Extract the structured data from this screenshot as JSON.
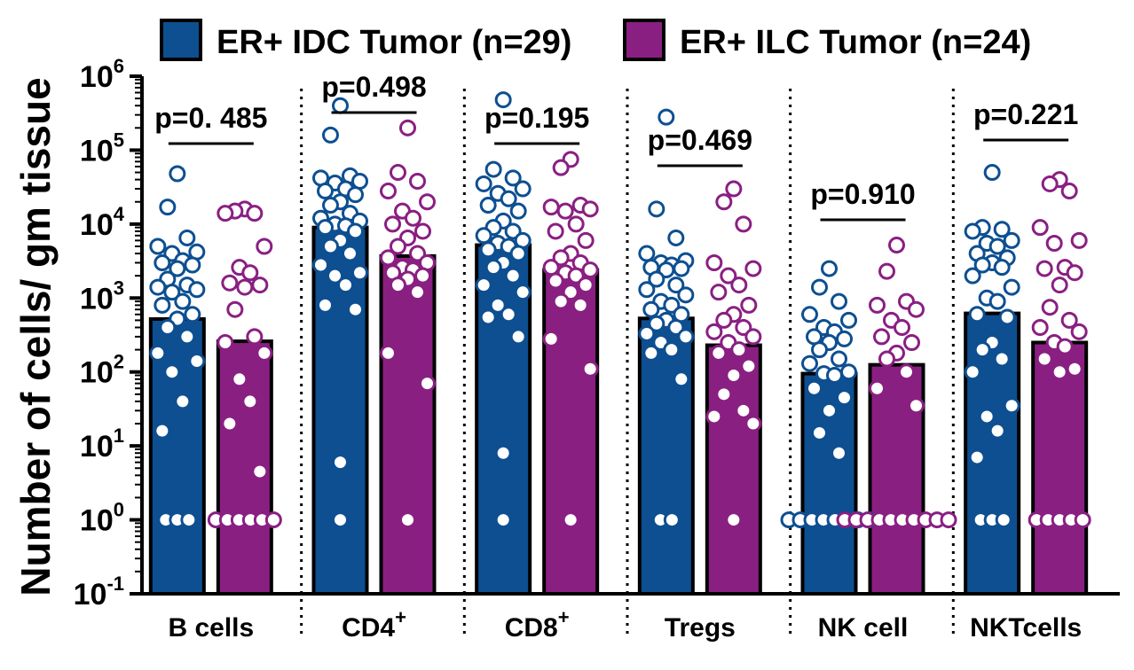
{
  "chart_data": {
    "type": "bar",
    "y_scale": "log",
    "ylabel": "Number of cells/ gm tissue",
    "y_ticks": [
      {
        "base": "10",
        "exp": "-1",
        "value": 0.1
      },
      {
        "base": "10",
        "exp": "0",
        "value": 1
      },
      {
        "base": "10",
        "exp": "1",
        "value": 10
      },
      {
        "base": "10",
        "exp": "2",
        "value": 100
      },
      {
        "base": "10",
        "exp": "3",
        "value": 1000
      },
      {
        "base": "10",
        "exp": "4",
        "value": 10000
      },
      {
        "base": "10",
        "exp": "5",
        "value": 100000
      },
      {
        "base": "10",
        "exp": "6",
        "value": 1000000
      }
    ],
    "ylim": [
      0.1,
      1000000
    ],
    "legend_position": "top",
    "categories": [
      {
        "base": "B cells",
        "sup": ""
      },
      {
        "base": "CD4",
        "sup": "+"
      },
      {
        "base": "CD8",
        "sup": "+"
      },
      {
        "base": "Tregs",
        "sup": ""
      },
      {
        "base": "NK cell",
        "sup": ""
      },
      {
        "base": "NKTcells",
        "sup": ""
      }
    ],
    "series": [
      {
        "name": "ER+ IDC Tumor (n=29)",
        "color": "#0d4f91",
        "values": [
          520,
          9000,
          5200,
          530,
          95,
          620
        ],
        "points": [
          [
            48000,
            17000,
            6500,
            5000,
            4200,
            4000,
            3200,
            3000,
            2800,
            2500,
            1800,
            1500,
            1400,
            1300,
            1200,
            900,
            800,
            600,
            520,
            400,
            300,
            180,
            140,
            100,
            40,
            16,
            1,
            1,
            1
          ],
          [
            400000,
            160000,
            45000,
            42000,
            38000,
            36000,
            30000,
            28000,
            25000,
            20000,
            18000,
            14000,
            12000,
            11000,
            10000,
            9500,
            9000,
            8000,
            6000,
            5000,
            4000,
            2800,
            2200,
            2000,
            1500,
            800,
            700,
            6,
            1
          ],
          [
            480000,
            55000,
            42000,
            35000,
            30000,
            26000,
            22000,
            18000,
            15000,
            11000,
            9000,
            8000,
            7000,
            6000,
            5500,
            5000,
            4500,
            4000,
            3000,
            2600,
            2000,
            1500,
            1200,
            800,
            600,
            550,
            300,
            8,
            1
          ],
          [
            280000,
            16000,
            6500,
            4000,
            3200,
            3000,
            2800,
            2600,
            2500,
            2400,
            1800,
            1500,
            1300,
            1100,
            900,
            800,
            700,
            600,
            500,
            450,
            400,
            330,
            300,
            250,
            200,
            180,
            80,
            1,
            1
          ],
          [
            2500,
            1400,
            900,
            600,
            500,
            400,
            350,
            300,
            280,
            250,
            200,
            150,
            130,
            100,
            95,
            90,
            60,
            45,
            30,
            15,
            8,
            1,
            1,
            1,
            1,
            1,
            1,
            1,
            1
          ],
          [
            50000,
            9000,
            8500,
            8000,
            6000,
            5500,
            5000,
            4000,
            3500,
            3000,
            2800,
            2600,
            2000,
            1400,
            1000,
            900,
            600,
            550,
            250,
            200,
            150,
            100,
            35,
            25,
            16,
            7,
            1,
            1,
            1
          ]
        ]
      },
      {
        "name": "ER+ ILC Tumor (n=24)",
        "color": "#8a1f82",
        "values": [
          260,
          3700,
          2400,
          230,
          125,
          250
        ],
        "points": [
          [
            16000,
            15000,
            14000,
            14000,
            5000,
            2600,
            2200,
            1600,
            1500,
            1400,
            700,
            300,
            250,
            180,
            80,
            40,
            20,
            4.5,
            1,
            1,
            1,
            1,
            1,
            1
          ],
          [
            200000,
            50000,
            38000,
            28000,
            20000,
            15000,
            12000,
            10000,
            8000,
            6500,
            5000,
            4000,
            3500,
            3000,
            2600,
            2400,
            2200,
            2000,
            1800,
            1500,
            1200,
            180,
            70,
            1
          ],
          [
            75000,
            58000,
            18000,
            17000,
            16000,
            15000,
            10000,
            8000,
            6000,
            4000,
            3500,
            3000,
            2600,
            2400,
            2200,
            2000,
            1700,
            1500,
            1200,
            900,
            800,
            280,
            110,
            1
          ],
          [
            30000,
            20000,
            10000,
            3000,
            2500,
            2000,
            1500,
            1200,
            800,
            600,
            500,
            400,
            350,
            300,
            250,
            200,
            180,
            120,
            90,
            50,
            30,
            25,
            20,
            1
          ],
          [
            5200,
            2300,
            900,
            800,
            700,
            500,
            400,
            300,
            250,
            180,
            150,
            100,
            60,
            35,
            1,
            1,
            1,
            1,
            1,
            1,
            1,
            1,
            1,
            1
          ],
          [
            40000,
            35000,
            28000,
            9000,
            6000,
            5500,
            2600,
            2500,
            2200,
            1500,
            750,
            500,
            400,
            350,
            250,
            220,
            150,
            110,
            100,
            1,
            1,
            1,
            1,
            1
          ]
        ]
      }
    ],
    "annotations": [
      "p=0. 485",
      "p=0.498",
      "p=0.195",
      "p=0.469",
      "p=0.910",
      "p=0.221"
    ]
  }
}
